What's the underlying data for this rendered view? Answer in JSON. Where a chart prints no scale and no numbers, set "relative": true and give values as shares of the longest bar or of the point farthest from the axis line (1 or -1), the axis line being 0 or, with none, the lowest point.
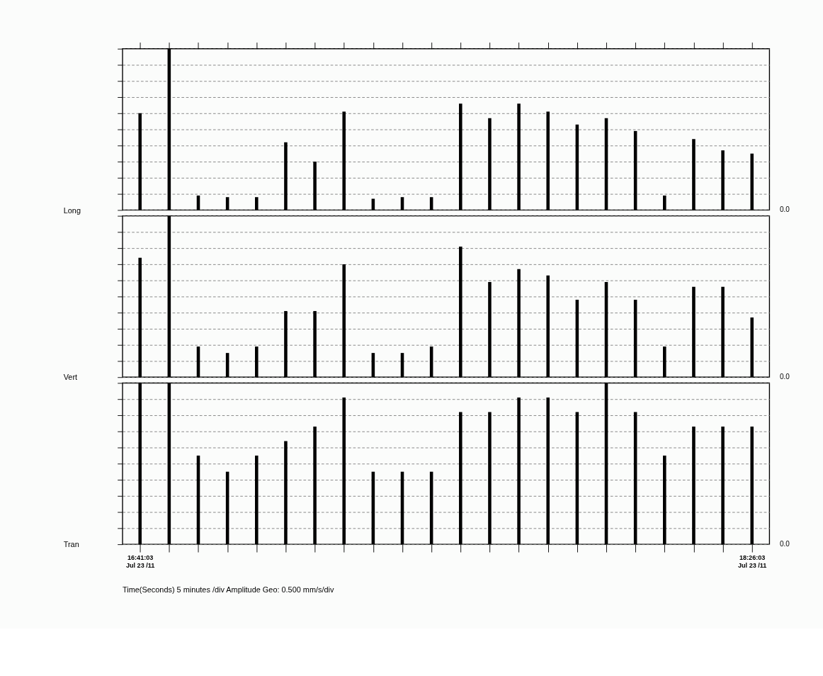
{
  "chart_data": [
    {
      "type": "bar",
      "relative": true,
      "ylabel": "Long",
      "annotations": [
        "0.0"
      ],
      "categories": [
        null,
        null,
        null,
        null,
        null,
        null,
        null,
        null,
        null,
        null,
        null,
        null,
        null,
        null,
        null,
        null,
        null,
        null,
        null,
        null,
        null,
        null
      ],
      "tick_labels": false,
      "color": "#000000",
      "grid": "y",
      "values": [
        0.6,
        1,
        0.09,
        0.08,
        0.08,
        0.42,
        0.3,
        0.61,
        0.07,
        0.08,
        0.08,
        0.66,
        0.57,
        0.66,
        0.61,
        0.53,
        0.57,
        0.49,
        0.09,
        0.44,
        0.37,
        0.35
      ]
    },
    {
      "type": "bar",
      "relative": true,
      "ylabel": "Vert",
      "annotations": [
        "0.0"
      ],
      "categories": [
        null,
        null,
        null,
        null,
        null,
        null,
        null,
        null,
        null,
        null,
        null,
        null,
        null,
        null,
        null,
        null,
        null,
        null,
        null,
        null,
        null,
        null
      ],
      "tick_labels": false,
      "color": "#000000",
      "grid": "y",
      "values": [
        0.74,
        1,
        0.19,
        0.15,
        0.19,
        0.41,
        0.41,
        0.7,
        0.15,
        0.15,
        0.19,
        0.81,
        0.59,
        0.67,
        0.63,
        0.48,
        0.59,
        0.48,
        0.19,
        0.56,
        0.56,
        0.37
      ]
    },
    {
      "type": "bar",
      "relative": true,
      "ylabel": "Tran",
      "annotations": [
        "0.0",
        "Time(Seconds) 5 minutes /div   Amplitude Geo: 0.500 mm/s/div"
      ],
      "categories": [
        "16:41:03\nJul 23 /11",
        null,
        null,
        null,
        null,
        null,
        null,
        null,
        null,
        null,
        null,
        null,
        null,
        null,
        null,
        null,
        null,
        null,
        null,
        null,
        null,
        "18:26:03\nJul 23 /11"
      ],
      "tick_labels": "x",
      "color": "#000000",
      "grid": "y",
      "values": [
        1,
        1,
        0.55,
        0.45,
        0.55,
        0.64,
        0.73,
        0.91,
        0.45,
        0.45,
        0.45,
        0.82,
        0.82,
        0.91,
        0.91,
        0.82,
        1,
        0.82,
        0.55,
        0.73,
        0.73,
        0.73
      ]
    }
  ]
}
